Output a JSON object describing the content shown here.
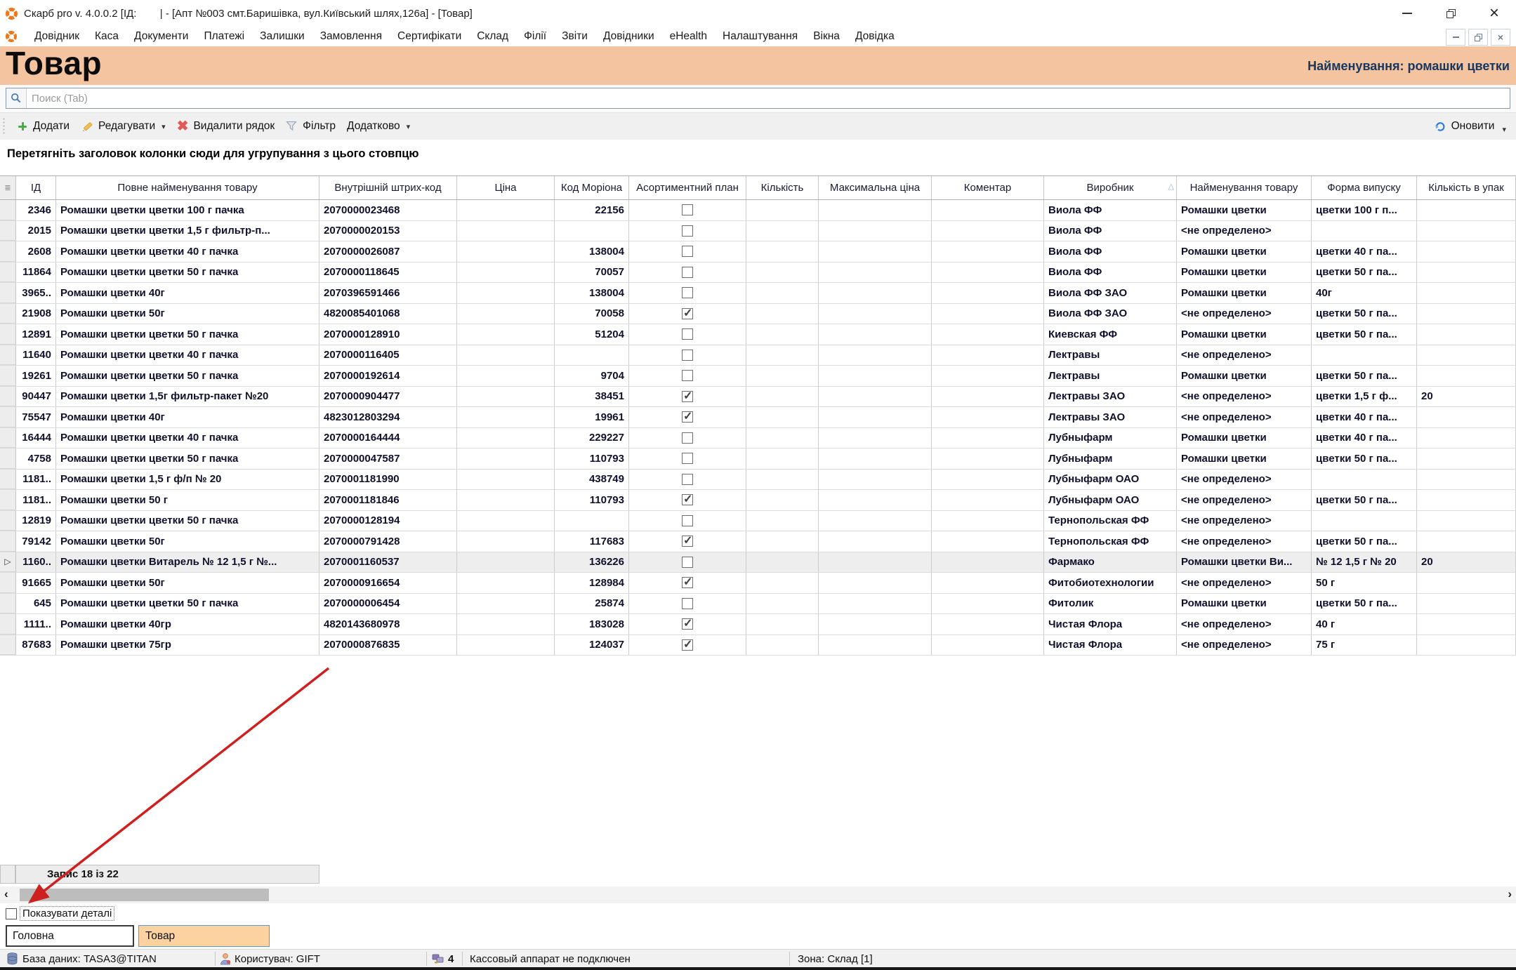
{
  "window": {
    "title": "Скарб pro v. 4.0.0.2 [ІД:        | - [Апт №003 смт.Баришівка, вул.Київський шлях,126а] - [Товар]"
  },
  "icons": {
    "app_logo": "orange-segmented-ring",
    "search": "magnifier",
    "add": "green-plus",
    "edit": "yellow-pencil",
    "delete": "red-x",
    "filter": "funnel",
    "refresh": "blue-circular-arrows",
    "database": "db-cylinder",
    "user": "person",
    "connections": "plug",
    "window_min": "minimize-dash",
    "window_restore": "overlapping-squares",
    "window_close": "x"
  },
  "menu": {
    "items": [
      "Довідник",
      "Каса",
      "Документи",
      "Платежі",
      "Залишки",
      "Замовлення",
      "Сертифікати",
      "Склад",
      "Філії",
      "Звіти",
      "Довідники",
      "eHealth",
      "Налаштування",
      "Вікна",
      "Довідка"
    ]
  },
  "header": {
    "title": "Товар",
    "selection_label": "Найменування: ромашки цветки",
    "band_color": "#f4c3a0"
  },
  "search": {
    "placeholder": "Поиск (Tab)"
  },
  "toolbar": {
    "add": "Додати",
    "edit": "Редагувати",
    "delete_row": "Видалити рядок",
    "filter": "Фільтр",
    "more": "Додатково",
    "refresh": "Оновити"
  },
  "group_hint": "Перетягніть заголовок колонки сюди для угрупування з цього стовпцю",
  "table": {
    "sort_key": "producer",
    "sort_glyph": "△",
    "columns": [
      {
        "key": "id",
        "label": "ІД"
      },
      {
        "key": "full_name",
        "label": "Повне найменування товару"
      },
      {
        "key": "barcode",
        "label": "Внутрішній штрих-код"
      },
      {
        "key": "price",
        "label": "Ціна"
      },
      {
        "key": "morion",
        "label": "Код Моріона"
      },
      {
        "key": "plan",
        "label": "Асортиментний план"
      },
      {
        "key": "qty",
        "label": "Кількість"
      },
      {
        "key": "max_price",
        "label": "Максимальна ціна"
      },
      {
        "key": "comment",
        "label": "Коментар"
      },
      {
        "key": "producer",
        "label": "Виробник"
      },
      {
        "key": "product_name",
        "label": "Найменування товару"
      },
      {
        "key": "form",
        "label": "Форма випуску"
      },
      {
        "key": "pack",
        "label": "Кількість в упак"
      }
    ],
    "rows": [
      {
        "id": "2346",
        "full_name": "Ромашки цветки цветки 100 г пачка",
        "barcode": "2070000023468",
        "price": "",
        "morion": "22156",
        "plan": false,
        "qty": "",
        "max_price": "",
        "comment": "",
        "producer": "Виола ФФ",
        "product_name": "Ромашки цветки",
        "form": "цветки 100 г п...",
        "pack": "",
        "selected": false
      },
      {
        "id": "2015",
        "full_name": "Ромашки цветки цветки 1,5 г фильтр-п...",
        "barcode": "2070000020153",
        "price": "",
        "morion": "",
        "plan": false,
        "qty": "",
        "max_price": "",
        "comment": "",
        "producer": "Виола ФФ",
        "product_name": "<не определено>",
        "form": "",
        "pack": "",
        "selected": false
      },
      {
        "id": "2608",
        "full_name": "Ромашки цветки цветки 40 г пачка",
        "barcode": "2070000026087",
        "price": "",
        "morion": "138004",
        "plan": false,
        "qty": "",
        "max_price": "",
        "comment": "",
        "producer": "Виола ФФ",
        "product_name": "Ромашки цветки",
        "form": "цветки 40 г па...",
        "pack": "",
        "selected": false
      },
      {
        "id": "11864",
        "full_name": "Ромашки цветки цветки 50 г пачка",
        "barcode": "2070000118645",
        "price": "",
        "morion": "70057",
        "plan": false,
        "qty": "",
        "max_price": "",
        "comment": "",
        "producer": "Виола ФФ",
        "product_name": "Ромашки цветки",
        "form": "цветки 50 г па...",
        "pack": "",
        "selected": false
      },
      {
        "id": "3965..",
        "full_name": "Ромашки цветки 40г",
        "barcode": "2070396591466",
        "price": "",
        "morion": "138004",
        "plan": false,
        "qty": "",
        "max_price": "",
        "comment": "",
        "producer": "Виола ФФ ЗАО",
        "product_name": "Ромашки цветки",
        "form": "40г",
        "pack": "",
        "selected": false
      },
      {
        "id": "21908",
        "full_name": "Ромашки цветки 50г",
        "barcode": "4820085401068",
        "price": "",
        "morion": "70058",
        "plan": true,
        "qty": "",
        "max_price": "",
        "comment": "",
        "producer": "Виола ФФ ЗАО",
        "product_name": "<не определено>",
        "form": "цветки 50 г па...",
        "pack": "",
        "selected": false
      },
      {
        "id": "12891",
        "full_name": "Ромашки цветки цветки 50 г пачка",
        "barcode": "2070000128910",
        "price": "",
        "morion": "51204",
        "plan": false,
        "qty": "",
        "max_price": "",
        "comment": "",
        "producer": "Киевская ФФ",
        "product_name": "Ромашки цветки",
        "form": "цветки 50 г па...",
        "pack": "",
        "selected": false
      },
      {
        "id": "11640",
        "full_name": "Ромашки цветки цветки 40 г пачка",
        "barcode": "2070000116405",
        "price": "",
        "morion": "",
        "plan": false,
        "qty": "",
        "max_price": "",
        "comment": "",
        "producer": "Лектравы",
        "product_name": "<не определено>",
        "form": "",
        "pack": "",
        "selected": false
      },
      {
        "id": "19261",
        "full_name": "Ромашки цветки цветки 50 г пачка",
        "barcode": "2070000192614",
        "price": "",
        "morion": "9704",
        "plan": false,
        "qty": "",
        "max_price": "",
        "comment": "",
        "producer": "Лектравы",
        "product_name": "Ромашки цветки",
        "form": "цветки 50 г па...",
        "pack": "",
        "selected": false
      },
      {
        "id": "90447",
        "full_name": "Ромашки цветки 1,5г фильтр-пакет №20",
        "barcode": "2070000904477",
        "price": "",
        "morion": "38451",
        "plan": true,
        "qty": "",
        "max_price": "",
        "comment": "",
        "producer": "Лектравы ЗАО",
        "product_name": "<не определено>",
        "form": "цветки 1,5 г ф...",
        "pack": "20",
        "selected": false
      },
      {
        "id": "75547",
        "full_name": "Ромашки цветки 40г",
        "barcode": "4823012803294",
        "price": "",
        "morion": "19961",
        "plan": true,
        "qty": "",
        "max_price": "",
        "comment": "",
        "producer": "Лектравы ЗАО",
        "product_name": "<не определено>",
        "form": "цветки 40 г па...",
        "pack": "",
        "selected": false
      },
      {
        "id": "16444",
        "full_name": "Ромашки цветки цветки 40 г пачка",
        "barcode": "2070000164444",
        "price": "",
        "morion": "229227",
        "plan": false,
        "qty": "",
        "max_price": "",
        "comment": "",
        "producer": "Лубныфарм",
        "product_name": "Ромашки цветки",
        "form": "цветки 40 г па...",
        "pack": "",
        "selected": false
      },
      {
        "id": "4758",
        "full_name": "Ромашки цветки цветки 50 г пачка",
        "barcode": "2070000047587",
        "price": "",
        "morion": "110793",
        "plan": false,
        "qty": "",
        "max_price": "",
        "comment": "",
        "producer": "Лубныфарм",
        "product_name": "Ромашки цветки",
        "form": "цветки 50 г па...",
        "pack": "",
        "selected": false
      },
      {
        "id": "1181..",
        "full_name": "Ромашки цветки 1,5 г ф/п № 20",
        "barcode": "2070001181990",
        "price": "",
        "morion": "438749",
        "plan": false,
        "qty": "",
        "max_price": "",
        "comment": "",
        "producer": "Лубныфарм ОАО",
        "product_name": "<не определено>",
        "form": "",
        "pack": "",
        "selected": false
      },
      {
        "id": "1181..",
        "full_name": "Ромашки цветки 50 г",
        "barcode": "2070001181846",
        "price": "",
        "morion": "110793",
        "plan": true,
        "qty": "",
        "max_price": "",
        "comment": "",
        "producer": "Лубныфарм ОАО",
        "product_name": "<не определено>",
        "form": "цветки 50 г па...",
        "pack": "",
        "selected": false
      },
      {
        "id": "12819",
        "full_name": "Ромашки цветки цветки 50 г пачка",
        "barcode": "2070000128194",
        "price": "",
        "morion": "",
        "plan": false,
        "qty": "",
        "max_price": "",
        "comment": "",
        "producer": "Тернопольская ФФ",
        "product_name": "<не определено>",
        "form": "",
        "pack": "",
        "selected": false
      },
      {
        "id": "79142",
        "full_name": "Ромашки цветки 50г",
        "barcode": "2070000791428",
        "price": "",
        "morion": "117683",
        "plan": true,
        "qty": "",
        "max_price": "",
        "comment": "",
        "producer": "Тернопольская ФФ",
        "product_name": "<не определено>",
        "form": "цветки 50 г па...",
        "pack": "",
        "selected": false
      },
      {
        "id": "1160..",
        "full_name": "Ромашки цветки Витарель № 12 1,5 г №...",
        "barcode": "2070001160537",
        "price": "",
        "morion": "136226",
        "plan": false,
        "qty": "",
        "max_price": "",
        "comment": "",
        "producer": "Фармако",
        "product_name": "Ромашки цветки Ви...",
        "form": "№ 12 1,5 г № 20",
        "pack": "20",
        "selected": true
      },
      {
        "id": "91665",
        "full_name": "Ромашки цветки 50г",
        "barcode": "2070000916654",
        "price": "",
        "morion": "128984",
        "plan": true,
        "qty": "",
        "max_price": "",
        "comment": "",
        "producer": "Фитобиотехнологии",
        "product_name": "<не определено>",
        "form": "50 г",
        "pack": "",
        "selected": false
      },
      {
        "id": "645",
        "full_name": "Ромашки цветки цветки 50 г пачка",
        "barcode": "2070000006454",
        "price": "",
        "morion": "25874",
        "plan": false,
        "qty": "",
        "max_price": "",
        "comment": "",
        "producer": "Фитолик",
        "product_name": "Ромашки цветки",
        "form": "цветки 50 г па...",
        "pack": "",
        "selected": false
      },
      {
        "id": "1111..",
        "full_name": "Ромашки цветки 40гр",
        "barcode": "4820143680978",
        "price": "",
        "morion": "183028",
        "plan": true,
        "qty": "",
        "max_price": "",
        "comment": "",
        "producer": "Чистая Флора",
        "product_name": "<не определено>",
        "form": "40 г",
        "pack": "",
        "selected": false
      },
      {
        "id": "87683",
        "full_name": "Ромашки цветки 75гр",
        "barcode": "2070000876835",
        "price": "",
        "morion": "124037",
        "plan": true,
        "qty": "",
        "max_price": "",
        "comment": "",
        "producer": "Чистая Флора",
        "product_name": "<не определено>",
        "form": "75 г",
        "pack": "",
        "selected": false
      }
    ]
  },
  "footer": {
    "record_label": "Запис 18 із 22",
    "show_details_label": "Показувати деталі",
    "tabs": [
      {
        "label": "Головна",
        "active": false
      },
      {
        "label": "Товар",
        "active": true
      }
    ]
  },
  "statusbar": {
    "database": "База даних: TASA3@TITAN",
    "user": "Користувач: GIFT",
    "connections": "4",
    "cash_register": "Кассовый аппарат не подключен",
    "zone": "Зона: Склад [1]"
  },
  "annotation": {
    "arrow_color": "#cf2020"
  }
}
